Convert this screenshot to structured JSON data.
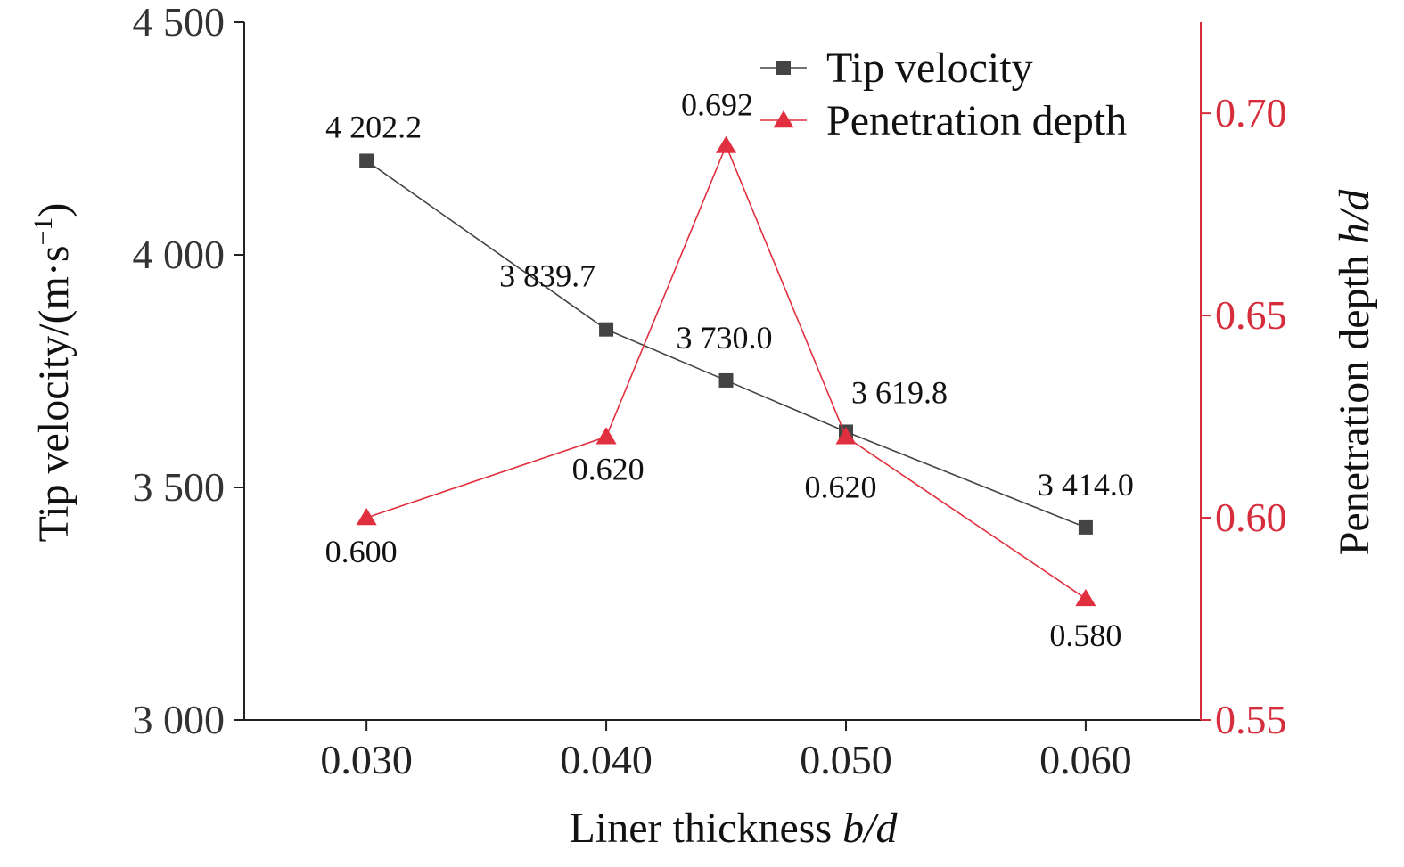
{
  "chart_data": {
    "type": "line",
    "x_axis": {
      "label_main": "Liner thickness ",
      "label_italic": "b/d",
      "categories": [
        "0.030",
        "0.040",
        "0.050",
        "0.060"
      ],
      "category_values": [
        0.03,
        0.04,
        0.05,
        0.06
      ],
      "range": [
        0.0249,
        0.0648
      ]
    },
    "y_left": {
      "label_main": "Tip velocity/(m·s",
      "label_sup": "−1",
      "label_close": ")",
      "ticks": [
        3000,
        3500,
        4000,
        4500
      ],
      "tick_labels": [
        "3 000",
        "3 500",
        "4 000",
        "4 500"
      ],
      "range": [
        3000,
        4500
      ],
      "color": "#333333"
    },
    "y_right": {
      "label_main": "Penetration depth ",
      "label_italic": "h/d",
      "ticks": [
        0.55,
        0.6,
        0.65,
        0.7
      ],
      "tick_labels": [
        "0.55",
        "0.60",
        "0.65",
        "0.70"
      ],
      "range": [
        0.55,
        0.7225
      ],
      "color": "#d62d3c"
    },
    "series": [
      {
        "name": "Tip velocity",
        "axis": "left",
        "marker": "square",
        "color": "#444444",
        "x": [
          0.03,
          0.04,
          0.045,
          0.05,
          0.06
        ],
        "y": [
          4202.2,
          3839.7,
          3730.0,
          3619.8,
          3414.0
        ],
        "labels": [
          "4 202.2",
          "3 839.7",
          "3 730.0",
          "3 619.8",
          "3 414.0"
        ]
      },
      {
        "name": "Penetration depth",
        "axis": "right",
        "marker": "triangle",
        "color": "#e0303f",
        "x": [
          0.03,
          0.04,
          0.045,
          0.05,
          0.06
        ],
        "y": [
          0.6,
          0.62,
          0.692,
          0.62,
          0.58
        ],
        "labels": [
          "0.600",
          "0.620",
          "0.692",
          "0.620",
          "0.580"
        ]
      }
    ],
    "legend": {
      "position": "top-right"
    },
    "grid": false
  }
}
